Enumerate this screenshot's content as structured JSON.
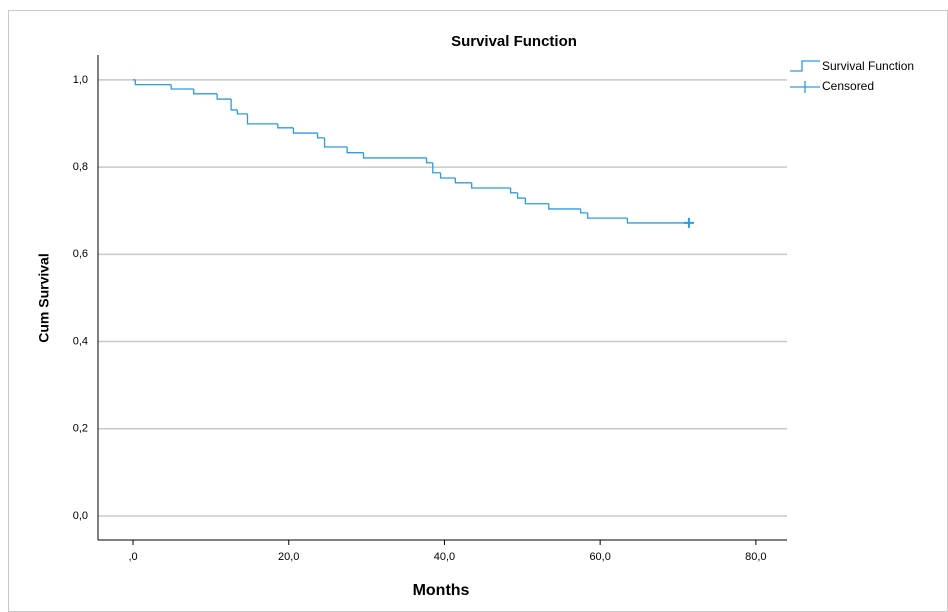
{
  "chart_data": {
    "type": "step",
    "title": "Survival Function",
    "x_label": "Months",
    "y_label": "Cum Survival",
    "series": [
      {
        "name": "Survival Function",
        "color": "#2d9be0",
        "x": [
          0,
          0.3,
          4.9,
          7.8,
          10.8,
          12.6,
          13.4,
          14.7,
          18.6,
          20.6,
          23.7,
          24.6,
          27.5,
          29.6,
          37.7,
          38.5,
          39.5,
          41.4,
          43.5,
          48.5,
          49.4,
          50.4,
          53.4,
          57.5,
          58.4,
          63.5,
          71.4
        ],
        "values": [
          1.0,
          0.989,
          0.979,
          0.968,
          0.956,
          0.931,
          0.922,
          0.899,
          0.89,
          0.878,
          0.867,
          0.846,
          0.833,
          0.821,
          0.81,
          0.787,
          0.775,
          0.764,
          0.752,
          0.741,
          0.729,
          0.716,
          0.704,
          0.695,
          0.683,
          0.672,
          0.672
        ]
      },
      {
        "name": "Censored",
        "color": "#2d9be0",
        "marker": "+",
        "x": [
          71.4
        ],
        "values": [
          0.672
        ]
      }
    ],
    "xlim": [
      -4.5,
      84
    ],
    "ylim": [
      -0.055,
      1.057
    ],
    "xticks": [
      {
        "value": 0,
        "label": ",0"
      },
      {
        "value": 20,
        "label": "20,0"
      },
      {
        "value": 40,
        "label": "40,0"
      },
      {
        "value": 60,
        "label": "60,0"
      },
      {
        "value": 80,
        "label": "80,0"
      }
    ],
    "yticks": [
      {
        "value": 0,
        "label": "0,0"
      },
      {
        "value": 0.2,
        "label": "0,2"
      },
      {
        "value": 0.4,
        "label": "0,4"
      },
      {
        "value": 0.6,
        "label": "0,6"
      },
      {
        "value": 0.8,
        "label": "0,8"
      },
      {
        "value": 1.0,
        "label": "1,0"
      }
    ],
    "grid": true,
    "legend": "top-right"
  }
}
